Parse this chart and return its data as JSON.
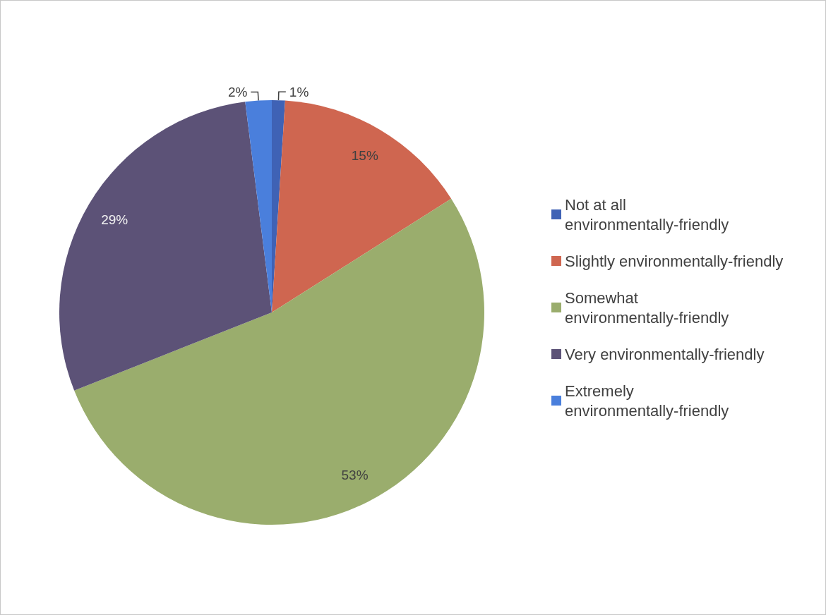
{
  "chart_data": {
    "type": "pie",
    "categories": [
      "Not at all environmentally-friendly",
      "Slightly environmentally-friendly",
      "Somewhat environmentally-friendly",
      "Very environmentally-friendly",
      "Extremely environmentally-friendly"
    ],
    "values": [
      1,
      15,
      53,
      29,
      2
    ],
    "colors": [
      "#3f62b5",
      "#cf6650",
      "#9aad6d",
      "#5c5277",
      "#4a7fdc"
    ],
    "value_labels": [
      "1%",
      "15%",
      "53%",
      "29%",
      "2%"
    ],
    "legend": "right"
  }
}
